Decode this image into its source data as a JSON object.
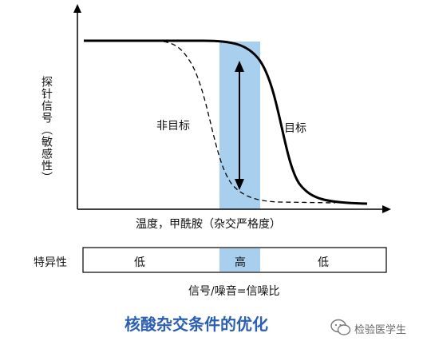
{
  "axes": {
    "y_label": "探针信号（敏感性）",
    "x_label": "温度，甲酰胺（杂交严格度）"
  },
  "curve_labels": {
    "non_target": "非目标",
    "target": "目标"
  },
  "specificity_bar": {
    "label": "特异性",
    "segments": [
      "低",
      "高",
      "低"
    ]
  },
  "snr_label": "信号/噪音=信噪比",
  "caption": "核酸杂交条件的优化",
  "watermark": "检验医学生",
  "colors": {
    "band": "#a9cfee",
    "caption": "#2b5fb4",
    "curve": "#000000"
  }
}
